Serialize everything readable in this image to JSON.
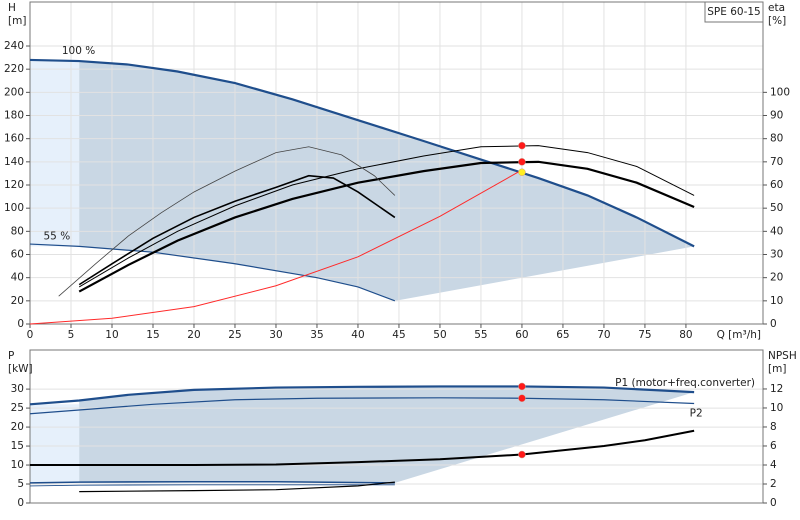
{
  "chart_data": [
    {
      "type": "line",
      "title": "SPE 60-15",
      "ylabel": [
        "H",
        "[m]"
      ],
      "y2label": [
        "eta",
        "[%]"
      ],
      "xlabel": "Q [m³/h]",
      "xlim": [
        0,
        89.4
      ],
      "ylim": [
        0,
        278
      ],
      "y2lim": [
        0,
        139
      ],
      "xticks": [
        0,
        5,
        10,
        15,
        20,
        25,
        30,
        35,
        40,
        45,
        50,
        55,
        60,
        65,
        70,
        75,
        80
      ],
      "yticks": [
        0,
        20,
        40,
        60,
        80,
        100,
        120,
        140,
        160,
        180,
        200,
        220,
        240
      ],
      "y2ticks": [
        0,
        10,
        20,
        30,
        40,
        50,
        60,
        70,
        80,
        90,
        100
      ],
      "grid": true,
      "series": [
        {
          "name": "100 %",
          "color": "#1f4e8c",
          "linewidth": 2.2,
          "x": [
            0,
            6,
            12,
            18,
            25,
            32,
            40,
            48,
            55,
            62,
            68,
            74,
            81
          ],
          "values": [
            228,
            227,
            224,
            218,
            208,
            194,
            176,
            158,
            142,
            126,
            111,
            92,
            67
          ]
        },
        {
          "name": "55 %",
          "color": "#1f4e8c",
          "linewidth": 1.2,
          "x": [
            0,
            6,
            15,
            25,
            35,
            40,
            44.5
          ],
          "values": [
            69,
            67,
            62,
            52,
            40,
            32,
            20
          ]
        },
        {
          "color": "#ff2a2a",
          "linewidth": 1,
          "x": [
            0,
            10,
            20,
            30,
            40,
            50,
            60
          ],
          "values": [
            0,
            5,
            15,
            33,
            58,
            93,
            133
          ]
        },
        {
          "color": "#000000",
          "linewidth": 2.2,
          "axis": "y2",
          "x": [
            6,
            12,
            18,
            25,
            32,
            40,
            48,
            55,
            62,
            68,
            74,
            81
          ],
          "values": [
            14,
            25.5,
            36,
            46,
            54,
            61,
            66,
            69.5,
            70,
            67,
            61,
            50.5
          ]
        },
        {
          "color": "#000000",
          "linewidth": 1,
          "axis": "y2",
          "x": [
            6,
            12,
            18,
            25,
            32,
            40,
            48,
            55,
            62,
            68,
            74,
            81
          ],
          "values": [
            16,
            28.5,
            40,
            51,
            60,
            67,
            72.5,
            76.5,
            77,
            74,
            68,
            55.5
          ]
        },
        {
          "color": "#000000",
          "linewidth": 1.6,
          "axis": "y2",
          "x": [
            6,
            10,
            15,
            20,
            25,
            30,
            34,
            37,
            40,
            44.5
          ],
          "values": [
            17,
            26,
            37,
            46,
            53,
            59,
            64,
            63,
            57,
            46
          ]
        },
        {
          "color": "#444444",
          "linewidth": 0.8,
          "axis": "y2",
          "x": [
            3.5,
            8,
            12,
            16,
            20,
            25,
            30,
            34,
            38,
            42,
            44.5
          ],
          "values": [
            12,
            26,
            38,
            48,
            57,
            66,
            74,
            76.5,
            73,
            64,
            55.5
          ]
        }
      ],
      "points": [
        {
          "x": 60,
          "y": 77,
          "axis": "y2",
          "color": "#ff1a1a"
        },
        {
          "x": 60,
          "y": 70,
          "axis": "y2",
          "color": "#ff1a1a"
        },
        {
          "x": 60,
          "y": 131,
          "color": "#ffee22"
        }
      ]
    },
    {
      "type": "line",
      "ylabel": [
        "P",
        "[kW]"
      ],
      "y2label": [
        "NPSH",
        "[m]"
      ],
      "xlim": [
        0,
        89.4
      ],
      "ylim": [
        0,
        40.3
      ],
      "y2lim": [
        0,
        16.1
      ],
      "yticks": [
        0,
        5,
        10,
        15,
        20,
        25,
        30
      ],
      "y2ticks": [
        0,
        2,
        4,
        6,
        8,
        10,
        12
      ],
      "grid": true,
      "series": [
        {
          "name": "P1 (motor+freq.converter)",
          "color": "#1f4e8c",
          "linewidth": 2.2,
          "x": [
            0,
            6,
            12,
            20,
            30,
            40,
            50,
            60,
            70,
            81
          ],
          "values": [
            26,
            27,
            28.5,
            29.8,
            30.4,
            30.6,
            30.7,
            30.7,
            30.4,
            29.2
          ]
        },
        {
          "name": "P2",
          "color": "#1f4e8c",
          "linewidth": 1.2,
          "x": [
            0,
            6,
            15,
            25,
            35,
            50,
            60,
            70,
            81
          ],
          "values": [
            23.5,
            24.5,
            26,
            27.2,
            27.6,
            27.7,
            27.6,
            27.2,
            26.2
          ]
        },
        {
          "color": "#1f4e8c",
          "linewidth": 1.6,
          "x": [
            0,
            6,
            20,
            30,
            44.5
          ],
          "values": [
            5.3,
            5.5,
            5.6,
            5.6,
            5.3
          ]
        },
        {
          "color": "#1f4e8c",
          "linewidth": 0.9,
          "x": [
            0,
            6,
            20,
            44.5
          ],
          "values": [
            4.5,
            4.7,
            4.8,
            4.8
          ]
        },
        {
          "color": "#000000",
          "linewidth": 2,
          "axis": "y2",
          "x": [
            0,
            6,
            20,
            30,
            40,
            50,
            60,
            70,
            75,
            81
          ],
          "values": [
            4,
            4,
            4,
            4.05,
            4.3,
            4.6,
            5.1,
            6,
            6.6,
            7.6
          ]
        },
        {
          "color": "#000000",
          "linewidth": 1.2,
          "axis": "y2",
          "x": [
            6,
            20,
            30,
            40,
            44.5
          ],
          "values": [
            1.2,
            1.3,
            1.4,
            1.8,
            2.2
          ]
        }
      ],
      "points": [
        {
          "x": 60,
          "y": 30.7,
          "color": "#ff1a1a"
        },
        {
          "x": 60,
          "y": 27.6,
          "color": "#ff1a1a"
        },
        {
          "x": 60,
          "y": 5.1,
          "axis": "y2",
          "color": "#ff1a1a"
        }
      ]
    }
  ]
}
